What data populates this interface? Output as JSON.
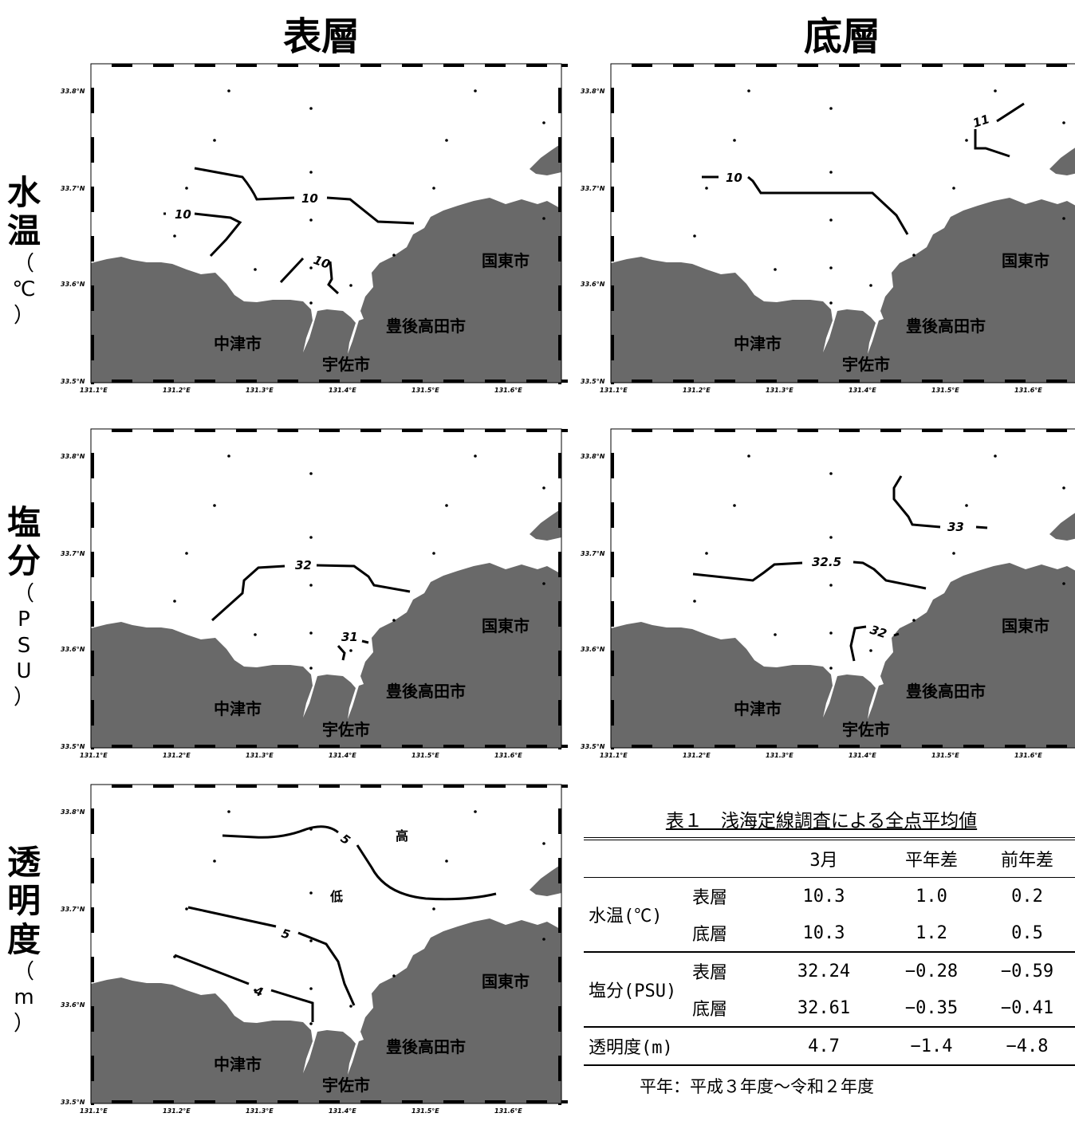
{
  "headers": {
    "surface": "表層",
    "bottom": "底層"
  },
  "rows": {
    "temp": {
      "chars": [
        "水",
        "温"
      ],
      "unit": [
        "（",
        "℃",
        "）"
      ]
    },
    "sal": {
      "chars": [
        "塩",
        "分"
      ],
      "unit": [
        "（",
        "P",
        "S",
        "U",
        "）"
      ]
    },
    "trans": {
      "chars": [
        "透",
        "明",
        "度"
      ],
      "unit": [
        "（",
        "m",
        "）"
      ]
    }
  },
  "map": {
    "lat_labels": [
      "33.8°N",
      "33.7°N",
      "33.6°N",
      "33.5°N"
    ],
    "lon_labels": [
      "131.1°E",
      "131.2°E",
      "131.3°E",
      "131.4°E",
      "131.5°E",
      "131.6°E"
    ],
    "cities": {
      "kunisaki": "国東市",
      "bungotakada": "豊後高田市",
      "nakatsu": "中津市",
      "usa": "宇佐市"
    },
    "land_color": "#696969"
  },
  "contours": {
    "temp_surface": [
      "10",
      "10",
      "10"
    ],
    "temp_bottom": [
      "10",
      "11"
    ],
    "sal_surface": [
      "32",
      "31"
    ],
    "sal_bottom": [
      "32.5",
      "33",
      "32"
    ],
    "trans_surface": [
      "5",
      "5",
      "4"
    ],
    "trans_high": "高",
    "trans_low": "低"
  },
  "table": {
    "title": "表１　浅海定線調査による全点平均値",
    "columns": [
      "3月",
      "平年差",
      "前年差"
    ],
    "rows": [
      {
        "group": "水温(℃)",
        "layer": "表層",
        "values": [
          "10.3",
          "1.0",
          "0.2"
        ]
      },
      {
        "group": "水温(℃)",
        "layer": "底層",
        "values": [
          "10.3",
          "1.2",
          "0.5"
        ]
      },
      {
        "group": "塩分(PSU)",
        "layer": "表層",
        "values": [
          "32.24",
          "−0.28",
          "−0.59"
        ]
      },
      {
        "group": "塩分(PSU)",
        "layer": "底層",
        "values": [
          "32.61",
          "−0.35",
          "−0.41"
        ]
      },
      {
        "group": "透明度(m)",
        "layer": "",
        "values": [
          "4.7",
          "−1.4",
          "−4.8"
        ]
      }
    ],
    "note": "平年：平成３年度～令和２年度"
  }
}
